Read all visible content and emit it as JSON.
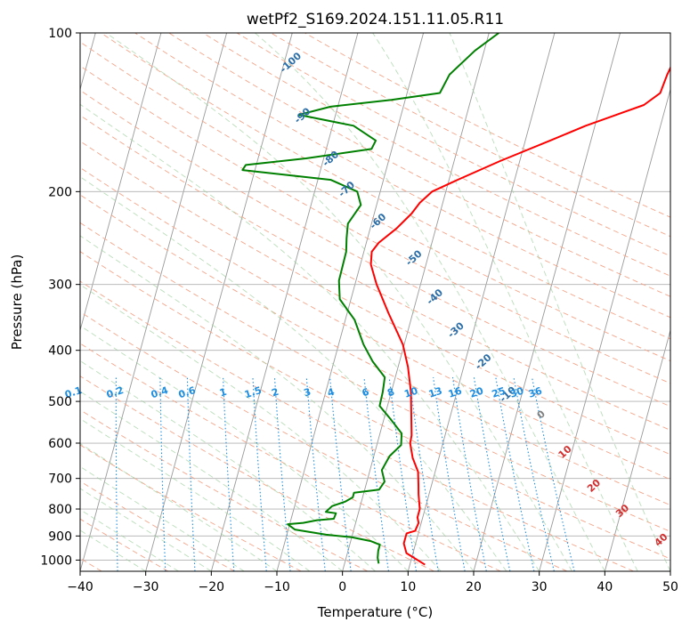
{
  "chart_data": {
    "type": "line",
    "title": "wetPf2_S169.2024.151.11.05.R11",
    "xlabel": "Temperature (°C)",
    "ylabel": "Pressure (hPa)",
    "xlim": [
      -40,
      50
    ],
    "ylim": [
      1050,
      100
    ],
    "y_scale": "log",
    "grid": true,
    "x_ticks": [
      "−40",
      "−30",
      "−20",
      "−10",
      "0",
      "10",
      "20",
      "30",
      "40",
      "50"
    ],
    "y_ticks": [
      "100",
      "200",
      "300",
      "400",
      "500",
      "600",
      "700",
      "800",
      "900",
      "1000"
    ],
    "x_tick_values": [
      -40,
      -30,
      -20,
      -10,
      0,
      10,
      20,
      30,
      40,
      50
    ],
    "y_tick_values": [
      100,
      200,
      300,
      400,
      500,
      600,
      700,
      800,
      900,
      1000
    ],
    "dry_adiabat_labels": [
      "-100",
      "-90",
      "-80",
      "-70",
      "-60",
      "-50",
      "-40",
      "-30",
      "-20",
      "-10"
    ],
    "dry_adiabat_label_positions": [
      {
        "t": -28.6,
        "p": 115
      },
      {
        "t": -24.6,
        "p": 145
      },
      {
        "t": -18.5,
        "p": 175
      },
      {
        "t": -14.8,
        "p": 200
      },
      {
        "t": -8.7,
        "p": 230
      },
      {
        "t": -1.7,
        "p": 270
      },
      {
        "t": 3.1,
        "p": 320
      },
      {
        "t": 7.7,
        "p": 370
      },
      {
        "t": 13.2,
        "p": 425
      },
      {
        "t": 18.3,
        "p": 490
      }
    ],
    "moist_adiabat_labels": [
      "0",
      "10",
      "20",
      "30",
      "40"
    ],
    "moist_adiabat_label_positions": [
      {
        "t": 24.2,
        "p": 535
      },
      {
        "t": 29.4,
        "p": 630
      },
      {
        "t": 35.2,
        "p": 730
      },
      {
        "t": 40.6,
        "p": 815
      },
      {
        "t": 47.7,
        "p": 925
      }
    ],
    "mixing_ratio_labels": [
      "0.1",
      "0.2",
      "0.4",
      "0.6",
      "1",
      "1.5",
      "2",
      "3",
      "4",
      "6",
      "8",
      "10",
      "13",
      "16",
      "20",
      "25",
      "30",
      "36"
    ],
    "mixing_ratio_values": [
      0.1,
      0.2,
      0.4,
      0.6,
      1,
      1.5,
      2,
      3,
      4,
      6,
      8,
      10,
      13,
      16,
      20,
      25,
      30,
      36
    ],
    "series": [
      {
        "color": "#ff0000",
        "points": [
          [
            12.3,
            1020
          ],
          [
            9,
            970
          ],
          [
            8.2,
            930
          ],
          [
            8.2,
            890
          ],
          [
            9.4,
            880
          ],
          [
            9.6,
            850
          ],
          [
            9.2,
            830
          ],
          [
            9.2,
            800
          ],
          [
            8.4,
            750
          ],
          [
            8,
            720
          ],
          [
            7.4,
            680
          ],
          [
            6,
            640
          ],
          [
            5,
            600
          ],
          [
            4.9,
            580
          ],
          [
            3.9,
            525
          ],
          [
            3.0,
            480
          ],
          [
            1.5,
            430
          ],
          [
            -0.2,
            390
          ],
          [
            -3.7,
            340
          ],
          [
            -6.7,
            300
          ],
          [
            -8.4,
            275
          ],
          [
            -8.8,
            260
          ],
          [
            -8.1,
            250
          ],
          [
            -6,
            235
          ],
          [
            -4.3,
            220
          ],
          [
            -3.5,
            210
          ],
          [
            -2.1,
            200
          ],
          [
            1.3,
            190
          ],
          [
            7,
            175
          ],
          [
            13.8,
            160
          ],
          [
            18.6,
            150
          ],
          [
            22.8,
            143
          ],
          [
            26.6,
            137
          ],
          [
            28.6,
            130
          ],
          [
            28.9,
            120
          ],
          [
            29.5,
            110
          ],
          [
            30.2,
            100
          ]
        ]
      },
      {
        "color": "#008000",
        "points": [
          [
            5.2,
            1015
          ],
          [
            4.8,
            990
          ],
          [
            4.6,
            960
          ],
          [
            4.6,
            935
          ],
          [
            3,
            920
          ],
          [
            0,
            905
          ],
          [
            -4,
            895
          ],
          [
            -9,
            875
          ],
          [
            -10.3,
            855
          ],
          [
            -8,
            850
          ],
          [
            -6,
            840
          ],
          [
            -3.5,
            835
          ],
          [
            -3.4,
            815
          ],
          [
            -5,
            810
          ],
          [
            -4.3,
            790
          ],
          [
            -2.5,
            775
          ],
          [
            -1.5,
            760
          ],
          [
            -1.5,
            745
          ],
          [
            2.2,
            735
          ],
          [
            2.7,
            710
          ],
          [
            1.8,
            675
          ],
          [
            2.4,
            635
          ],
          [
            3.7,
            605
          ],
          [
            3.3,
            575
          ],
          [
            1.0,
            540
          ],
          [
            -1.2,
            510
          ],
          [
            -1.3,
            480
          ],
          [
            -1.6,
            450
          ],
          [
            -4.1,
            420
          ],
          [
            -6.2,
            390
          ],
          [
            -8.6,
            350
          ],
          [
            -11.7,
            320
          ],
          [
            -12.6,
            295
          ],
          [
            -12.7,
            260
          ],
          [
            -13.2,
            245
          ],
          [
            -13.6,
            230
          ],
          [
            -12.4,
            212
          ],
          [
            -13.5,
            200
          ],
          [
            -18,
            190
          ],
          [
            -31.9,
            182
          ],
          [
            -31.6,
            178
          ],
          [
            -22.7,
            173
          ],
          [
            -13.1,
            166
          ],
          [
            -12.8,
            160
          ],
          [
            -16.8,
            150
          ],
          [
            -25.6,
            143
          ],
          [
            -21.1,
            138
          ],
          [
            -12.1,
            134
          ],
          [
            -5,
            130
          ],
          [
            -4.3,
            120
          ],
          [
            -1.4,
            108
          ],
          [
            1.5,
            100
          ]
        ]
      }
    ]
  }
}
